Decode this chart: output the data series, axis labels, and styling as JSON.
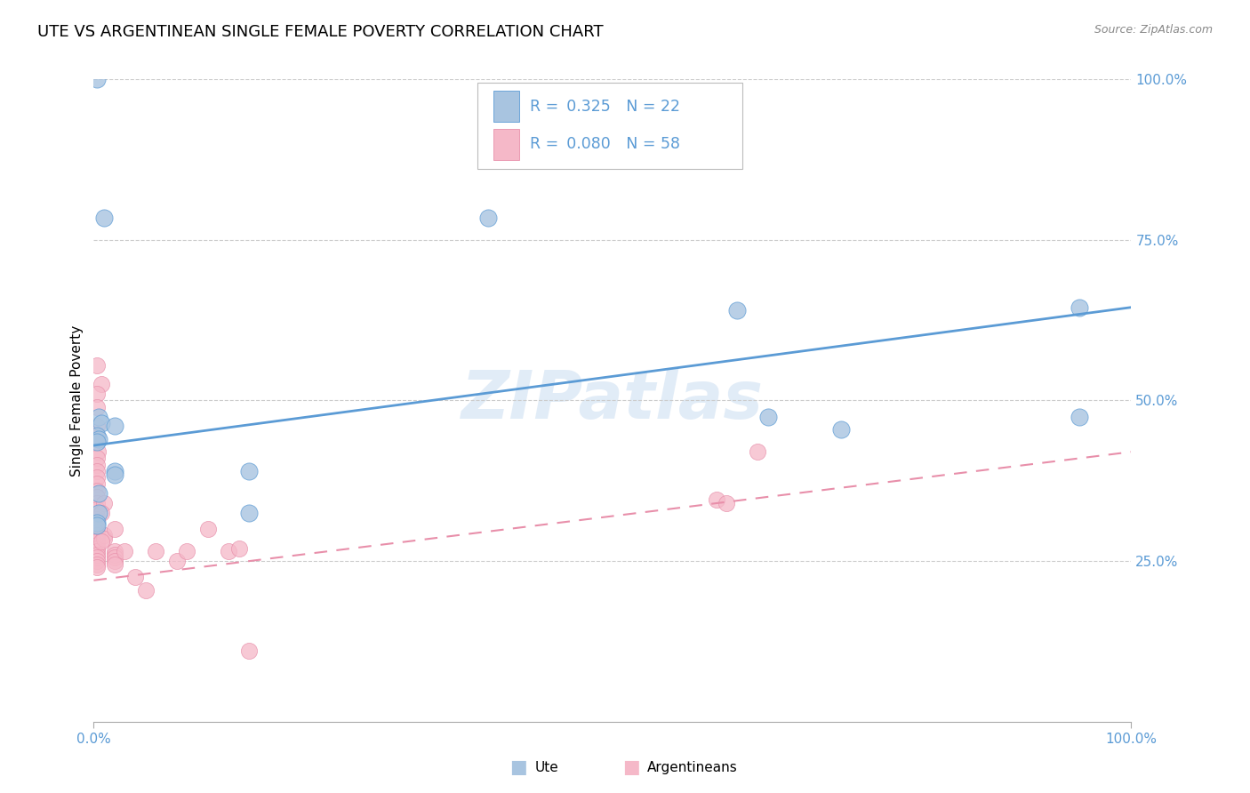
{
  "title": "UTE VS ARGENTINEAN SINGLE FEMALE POVERTY CORRELATION CHART",
  "source": "Source: ZipAtlas.com",
  "ylabel": "Single Female Poverty",
  "ute_color": "#a8c4e0",
  "arg_color": "#f5b8c8",
  "ute_line_color": "#5b9bd5",
  "arg_line_color": "#e88faa",
  "ute_R": 0.325,
  "ute_N": 22,
  "arg_R": 0.08,
  "arg_N": 58,
  "watermark_text": "ZIPatlas",
  "ute_line": [
    0.0,
    0.43,
    1.0,
    0.645
  ],
  "arg_line": [
    0.0,
    0.22,
    1.0,
    0.42
  ],
  "ute_points": [
    [
      0.003,
      1.0
    ],
    [
      0.01,
      0.785
    ],
    [
      0.38,
      0.785
    ],
    [
      0.005,
      0.475
    ],
    [
      0.007,
      0.465
    ],
    [
      0.02,
      0.46
    ],
    [
      0.003,
      0.445
    ],
    [
      0.005,
      0.44
    ],
    [
      0.003,
      0.435
    ],
    [
      0.02,
      0.39
    ],
    [
      0.15,
      0.39
    ],
    [
      0.005,
      0.355
    ],
    [
      0.005,
      0.325
    ],
    [
      0.15,
      0.325
    ],
    [
      0.003,
      0.31
    ],
    [
      0.003,
      0.305
    ],
    [
      0.65,
      0.475
    ],
    [
      0.62,
      0.64
    ],
    [
      0.72,
      0.455
    ],
    [
      0.95,
      0.475
    ],
    [
      0.95,
      0.645
    ],
    [
      0.02,
      0.385
    ]
  ],
  "arg_points": [
    [
      0.003,
      0.555
    ],
    [
      0.007,
      0.525
    ],
    [
      0.003,
      0.51
    ],
    [
      0.003,
      0.49
    ],
    [
      0.003,
      0.46
    ],
    [
      0.003,
      0.445
    ],
    [
      0.003,
      0.435
    ],
    [
      0.004,
      0.42
    ],
    [
      0.003,
      0.41
    ],
    [
      0.003,
      0.4
    ],
    [
      0.003,
      0.39
    ],
    [
      0.003,
      0.38
    ],
    [
      0.003,
      0.37
    ],
    [
      0.003,
      0.36
    ],
    [
      0.003,
      0.35
    ],
    [
      0.003,
      0.34
    ],
    [
      0.003,
      0.33
    ],
    [
      0.003,
      0.32
    ],
    [
      0.003,
      0.315
    ],
    [
      0.003,
      0.31
    ],
    [
      0.003,
      0.305
    ],
    [
      0.003,
      0.3
    ],
    [
      0.003,
      0.295
    ],
    [
      0.003,
      0.29
    ],
    [
      0.003,
      0.285
    ],
    [
      0.003,
      0.28
    ],
    [
      0.003,
      0.275
    ],
    [
      0.003,
      0.27
    ],
    [
      0.003,
      0.265
    ],
    [
      0.003,
      0.26
    ],
    [
      0.003,
      0.255
    ],
    [
      0.003,
      0.25
    ],
    [
      0.003,
      0.245
    ],
    [
      0.003,
      0.24
    ],
    [
      0.01,
      0.34
    ],
    [
      0.01,
      0.29
    ],
    [
      0.01,
      0.285
    ],
    [
      0.007,
      0.28
    ],
    [
      0.02,
      0.265
    ],
    [
      0.02,
      0.26
    ],
    [
      0.02,
      0.255
    ],
    [
      0.02,
      0.25
    ],
    [
      0.02,
      0.245
    ],
    [
      0.03,
      0.265
    ],
    [
      0.04,
      0.225
    ],
    [
      0.05,
      0.205
    ],
    [
      0.06,
      0.265
    ],
    [
      0.08,
      0.25
    ],
    [
      0.09,
      0.265
    ],
    [
      0.11,
      0.3
    ],
    [
      0.13,
      0.265
    ],
    [
      0.14,
      0.27
    ],
    [
      0.02,
      0.3
    ],
    [
      0.007,
      0.325
    ],
    [
      0.15,
      0.11
    ],
    [
      0.64,
      0.42
    ],
    [
      0.6,
      0.345
    ],
    [
      0.61,
      0.34
    ]
  ]
}
